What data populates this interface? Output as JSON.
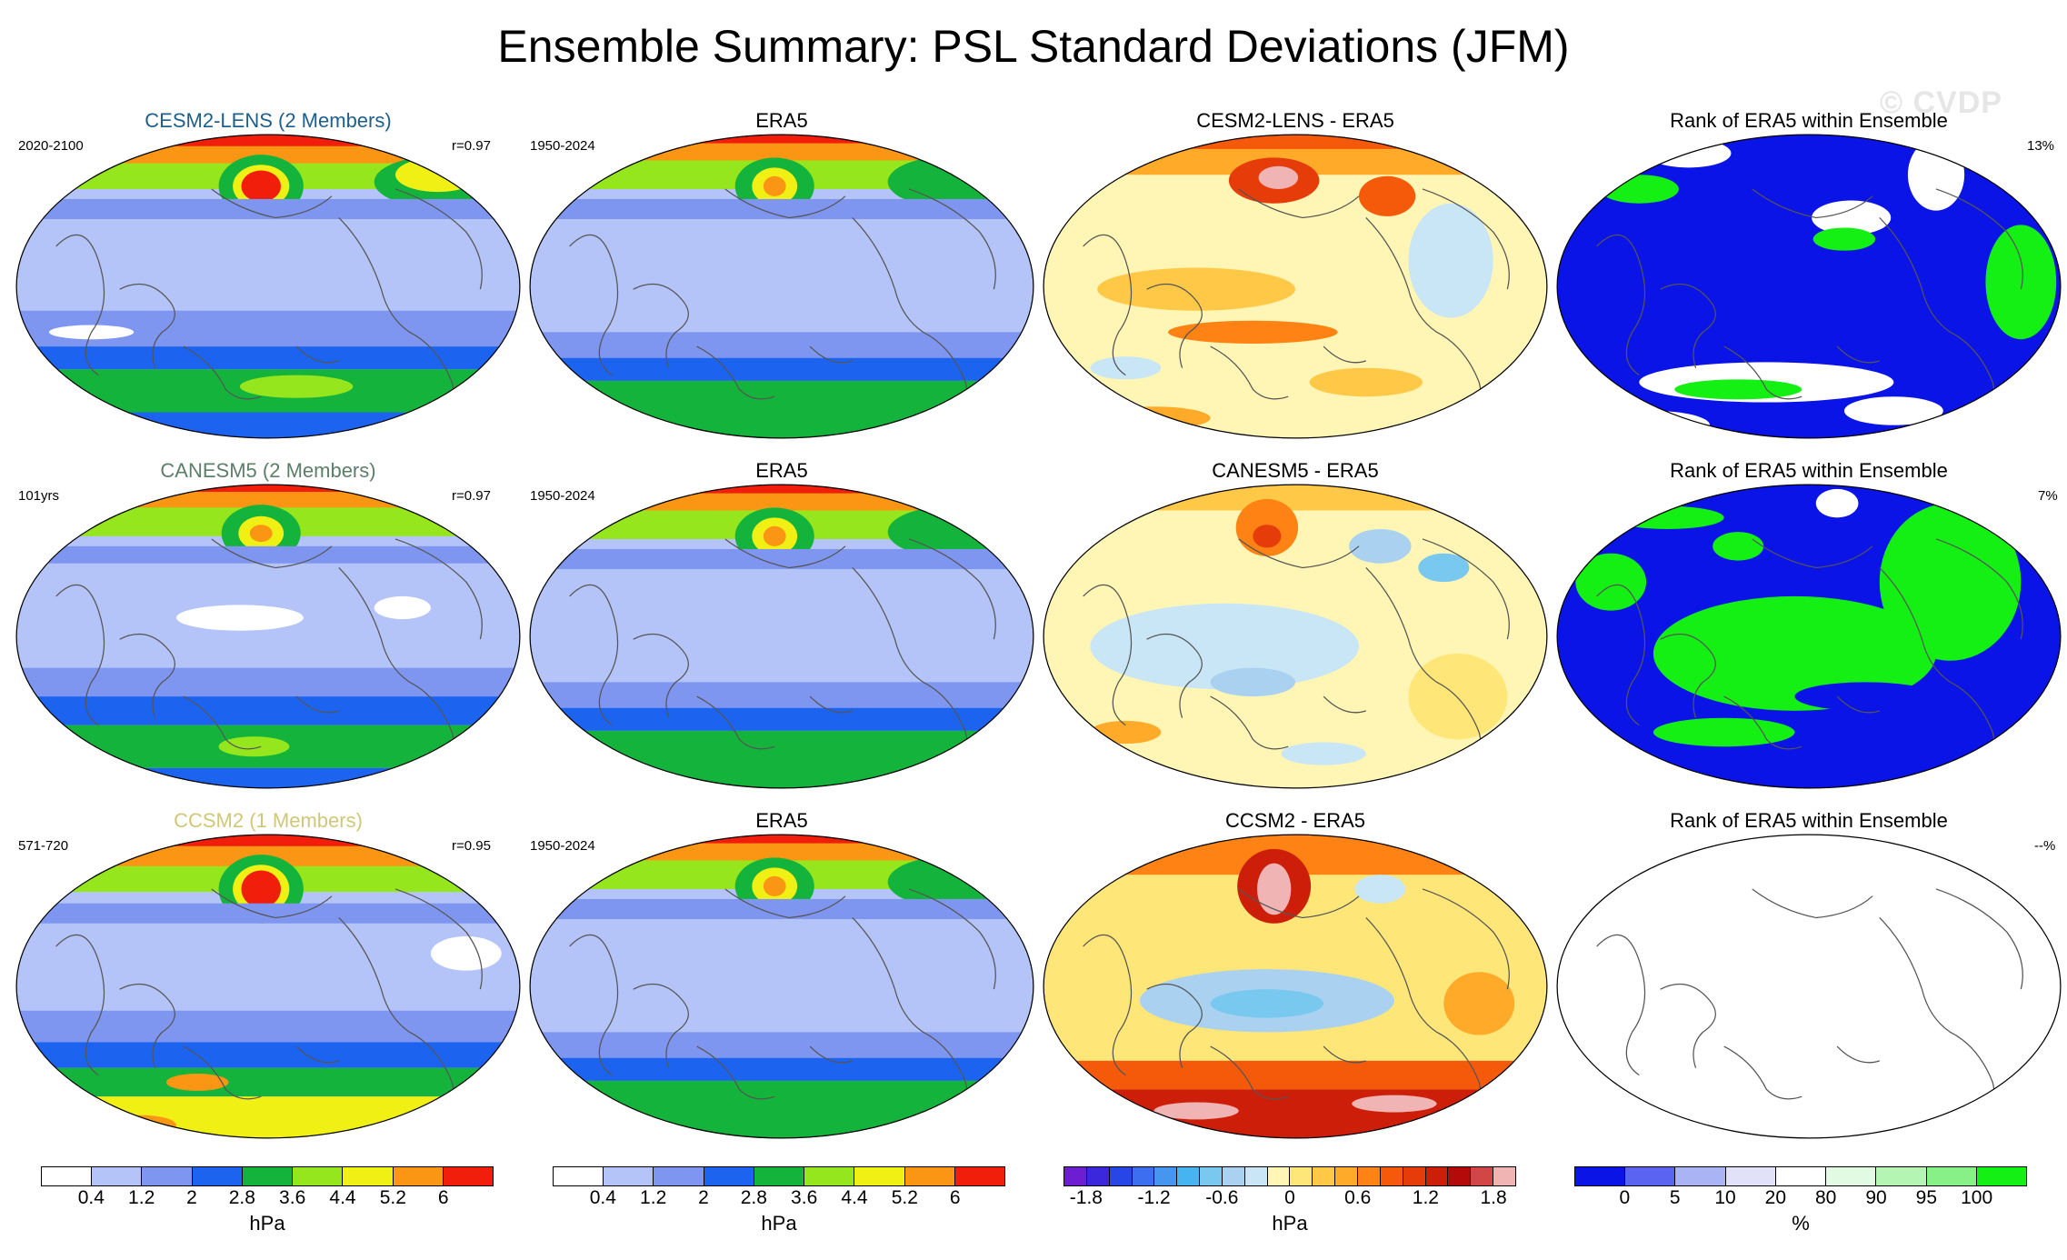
{
  "title": "Ensemble Summary: PSL Standard Deviations (JFM)",
  "watermark": "© CVDP",
  "rows": [
    {
      "model_title": "CESM2-LENS (2 Members)",
      "model_title_color": "#1f5f8b",
      "model_period": "2020-2100",
      "model_r": "r=0.97",
      "obs_title": "ERA5",
      "obs_period": "1950-2024",
      "diff_title": "CESM2-LENS - ERA5",
      "rank_title": "Rank of ERA5 within Ensemble",
      "rank_pct": "13%"
    },
    {
      "model_title": "CANESM5 (2 Members)",
      "model_title_color": "#5c7f6a",
      "model_period": "101yrs",
      "model_r": "r=0.97",
      "obs_title": "ERA5",
      "obs_period": "1950-2024",
      "diff_title": "CANESM5 - ERA5",
      "rank_title": "Rank of ERA5 within Ensemble",
      "rank_pct": "7%"
    },
    {
      "model_title": "CCSM2 (1 Members)",
      "model_title_color": "#cfc87a",
      "model_period": "571-720",
      "model_r": "r=0.95",
      "obs_title": "ERA5",
      "obs_period": "1950-2024",
      "diff_title": "CCSM2 - ERA5",
      "rank_title": "Rank of ERA5 within Ensemble",
      "rank_pct": "--%"
    }
  ],
  "colorbars": {
    "std": {
      "units": "hPa",
      "ticks": [
        "0.4",
        "1.2",
        "2",
        "2.8",
        "3.6",
        "4.4",
        "5.2",
        "6"
      ],
      "colors": [
        "#ffffff",
        "#b4c4f8",
        "#7f96f0",
        "#1c64f0",
        "#14b43c",
        "#96e61e",
        "#f0f014",
        "#fa9614",
        "#f01e0a"
      ]
    },
    "diff": {
      "units": "hPa",
      "ticks": [
        "-1.8",
        "-1.2",
        "-0.6",
        "0",
        "0.6",
        "1.2",
        "1.8"
      ],
      "colors": [
        "#6e1ed2",
        "#3c28dc",
        "#2846e6",
        "#3c6ef0",
        "#4696f0",
        "#46b4f0",
        "#78c8f0",
        "#aad2f0",
        "#c8e6f5",
        "#fff5b4",
        "#ffe678",
        "#ffc846",
        "#ffaa28",
        "#ff8214",
        "#f55a0a",
        "#e63c0a",
        "#cd1e0a",
        "#b40a0a",
        "#d24646",
        "#f0b4b4"
      ]
    },
    "rank": {
      "units": "%",
      "ticks": [
        "0",
        "5",
        "10",
        "20",
        "80",
        "90",
        "95",
        "100"
      ],
      "colors": [
        "#0a14e6",
        "#5a64f0",
        "#aab4f5",
        "#e1e1fa",
        "#ffffff",
        "#e1fae1",
        "#b4f5b4",
        "#87f087",
        "#14f014"
      ]
    }
  }
}
